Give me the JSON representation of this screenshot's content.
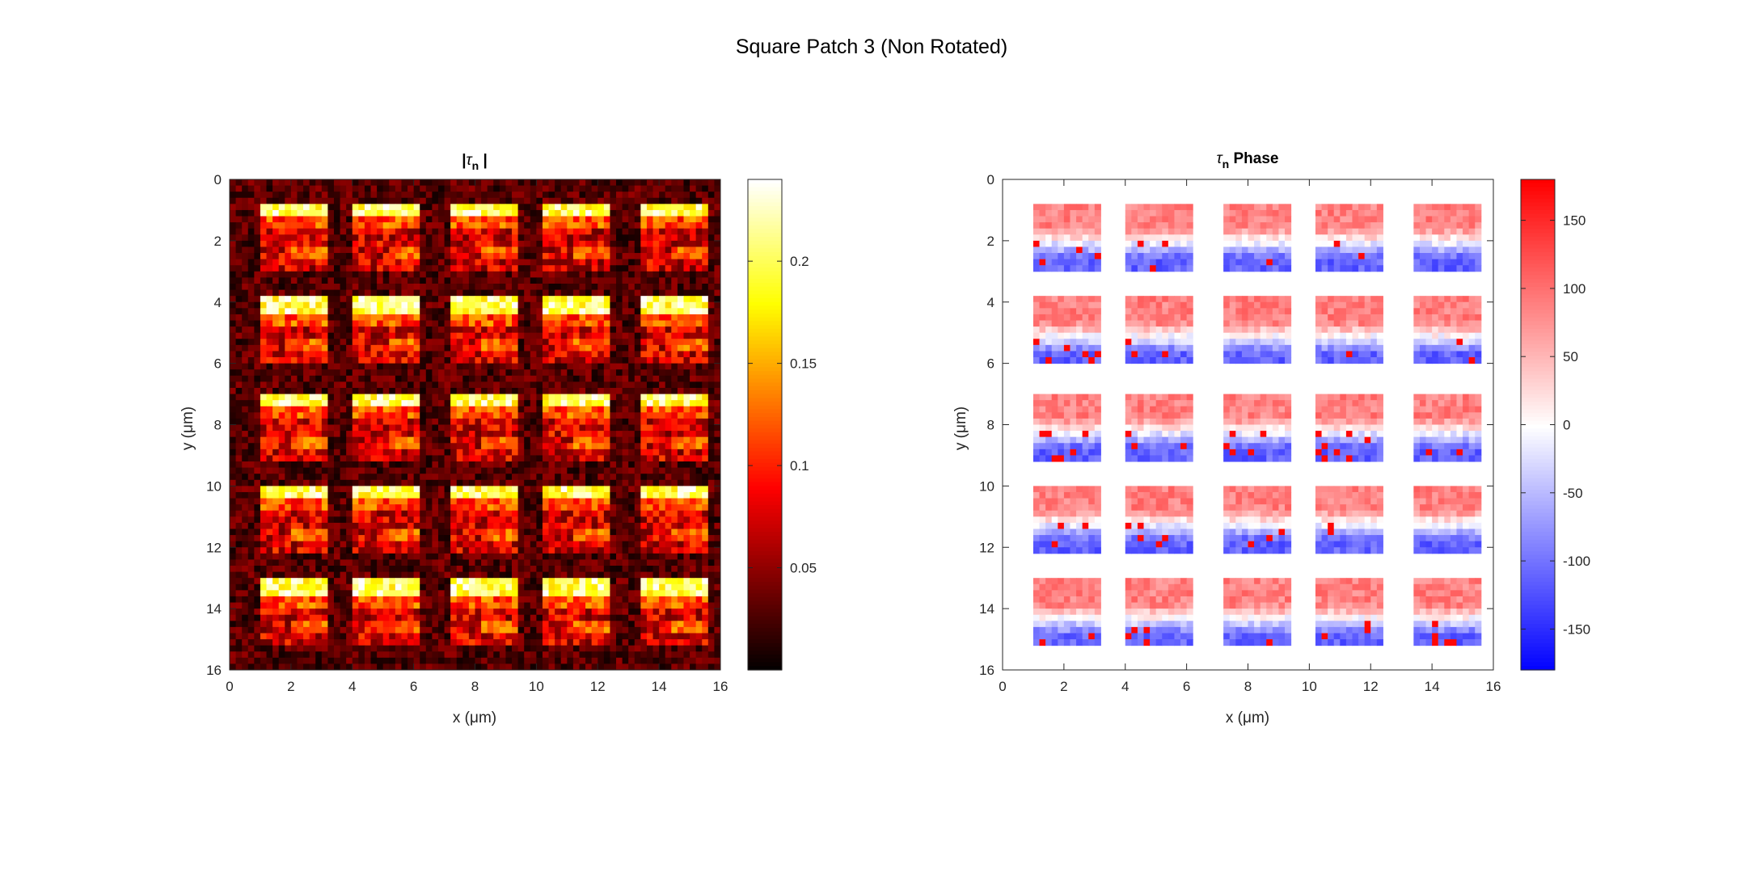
{
  "figure_title": "Square Patch 3 (Non Rotated)",
  "chart_data": [
    {
      "type": "heatmap",
      "title_parts": {
        "prefix": "|",
        "symbol": "τ",
        "subscript": "n",
        "suffix": " |"
      },
      "xlabel": "x (μm)",
      "ylabel": "y (μm)",
      "xlim": [
        0,
        16
      ],
      "ylim": [
        0,
        16
      ],
      "y_reversed": true,
      "xticks": [
        0,
        2,
        4,
        6,
        8,
        10,
        12,
        14,
        16
      ],
      "yticks": [
        0,
        2,
        4,
        6,
        8,
        10,
        12,
        14,
        16
      ],
      "colormap": "hot",
      "clim": [
        0,
        0.24
      ],
      "colorbar_ticks": [
        0.05,
        0.1,
        0.15,
        0.2
      ],
      "grid": false,
      "pattern": {
        "rows": 5,
        "cols": 5,
        "patch_x_starts": [
          0.9,
          4.0,
          7.1,
          10.2,
          13.3
        ],
        "patch_width": 2.2,
        "patch_y_starts": [
          0.7,
          3.8,
          6.9,
          9.9,
          13.0
        ],
        "patch_height": 2.2,
        "bright_edge_value": 0.22,
        "interior_value": 0.09,
        "background_value": 0.03
      }
    },
    {
      "type": "heatmap",
      "title_parts": {
        "prefix": "",
        "symbol": "τ",
        "subscript": "n",
        "suffix": " Phase"
      },
      "xlabel": "x (μm)",
      "ylabel": "y (μm)",
      "xlim": [
        0,
        16
      ],
      "ylim": [
        0,
        16
      ],
      "y_reversed": true,
      "xticks": [
        0,
        2,
        4,
        6,
        8,
        10,
        12,
        14,
        16
      ],
      "yticks": [
        0,
        2,
        4,
        6,
        8,
        10,
        12,
        14,
        16
      ],
      "colormap": "blue-white-red",
      "clim": [
        -180,
        180
      ],
      "colorbar_ticks": [
        150,
        100,
        50,
        0,
        -50,
        -100,
        -150
      ],
      "grid": false,
      "pattern": {
        "rows": 5,
        "cols": 5,
        "patch_x_starts": [
          0.9,
          4.0,
          7.1,
          10.2,
          13.3
        ],
        "patch_width": 2.2,
        "patch_y_starts": [
          0.7,
          3.8,
          6.9,
          9.9,
          13.0
        ],
        "patch_height": 2.2,
        "top_value": 90,
        "bottom_value": -110
      }
    }
  ]
}
